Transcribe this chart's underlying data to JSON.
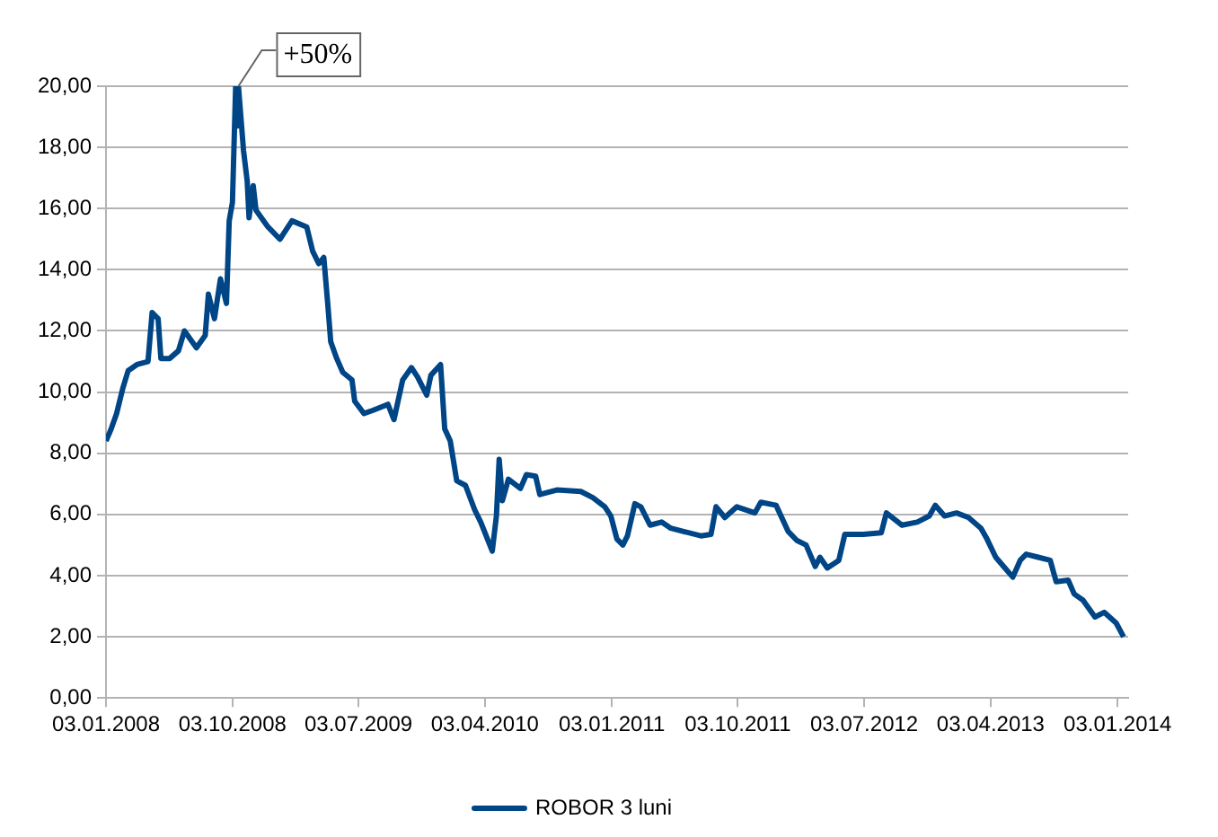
{
  "chart_data": {
    "type": "line",
    "x": [
      "2008-01-03",
      "2008-01-13",
      "2008-01-26",
      "2008-02-08",
      "2008-02-20",
      "2008-03-10",
      "2008-04-03",
      "2008-04-12",
      "2008-04-25",
      "2008-05-01",
      "2008-05-20",
      "2008-06-08",
      "2008-06-21",
      "2008-07-17",
      "2008-08-05",
      "2008-08-12",
      "2008-08-25",
      "2008-09-07",
      "2008-09-20",
      "2008-09-26",
      "2008-10-03",
      "2008-10-10",
      "2008-10-13",
      "2008-10-16",
      "2008-10-27",
      "2008-11-04",
      "2008-11-08",
      "2008-11-17",
      "2008-11-23",
      "2008-12-19",
      "2009-01-14",
      "2009-02-09",
      "2009-03-13",
      "2009-03-26",
      "2009-04-08",
      "2009-04-19",
      "2009-04-28",
      "2009-05-04",
      "2009-05-17",
      "2009-05-30",
      "2009-06-19",
      "2009-06-25",
      "2009-07-15",
      "2009-08-03",
      "2009-09-05",
      "2009-09-18",
      "2009-10-07",
      "2009-10-26",
      "2009-11-08",
      "2009-11-28",
      "2009-12-07",
      "2009-12-28",
      "2010-01-06",
      "2010-01-18",
      "2010-02-01",
      "2010-02-20",
      "2010-03-12",
      "2010-03-25",
      "2010-04-19",
      "2010-04-28",
      "2010-05-04",
      "2010-05-11",
      "2010-05-24",
      "2010-06-19",
      "2010-07-02",
      "2010-07-22",
      "2010-07-31",
      "2010-09-06",
      "2010-10-28",
      "2010-11-23",
      "2010-12-19",
      "2011-01-01",
      "2011-01-14",
      "2011-01-27",
      "2011-02-06",
      "2011-02-22",
      "2011-03-07",
      "2011-03-27",
      "2011-04-21",
      "2011-05-11",
      "2011-06-06",
      "2011-07-15",
      "2011-08-06",
      "2011-08-17",
      "2011-09-05",
      "2011-10-01",
      "2011-11-09",
      "2011-11-22",
      "2011-12-25",
      "2012-01-20",
      "2012-02-08",
      "2012-02-28",
      "2012-03-19",
      "2012-03-29",
      "2012-04-14",
      "2012-05-09",
      "2012-05-22",
      "2012-07-01",
      "2012-08-09",
      "2012-08-20",
      "2012-09-23",
      "2012-10-26",
      "2012-11-21",
      "2012-12-04",
      "2012-12-24",
      "2013-01-19",
      "2013-02-14",
      "2013-03-13",
      "2013-03-26",
      "2013-04-14",
      "2013-05-04",
      "2013-05-21",
      "2013-06-06",
      "2013-06-19",
      "2013-07-15",
      "2013-08-10",
      "2013-08-23",
      "2013-09-18",
      "2013-10-01",
      "2013-10-20",
      "2013-11-15",
      "2013-12-05",
      "2013-12-31",
      "2014-01-16"
    ],
    "series": [
      {
        "name": "ROBOR 3 luni",
        "color": "#004586",
        "values": [
          8.4,
          8.75,
          9.3,
          10.1,
          10.7,
          10.9,
          11.0,
          12.6,
          12.4,
          11.1,
          11.1,
          11.35,
          12.0,
          11.45,
          11.85,
          13.2,
          12.4,
          13.7,
          12.9,
          15.6,
          16.2,
          20.0,
          18.7,
          20.0,
          17.9,
          16.9,
          15.7,
          16.75,
          15.95,
          15.4,
          15.0,
          15.6,
          15.4,
          14.6,
          14.2,
          14.4,
          12.8,
          11.65,
          11.1,
          10.65,
          10.4,
          9.7,
          9.3,
          9.4,
          9.6,
          9.1,
          10.4,
          10.8,
          10.5,
          9.9,
          10.55,
          10.9,
          8.8,
          8.4,
          7.1,
          6.95,
          6.15,
          5.75,
          4.8,
          5.95,
          7.8,
          6.45,
          7.15,
          6.85,
          7.3,
          7.25,
          6.65,
          6.8,
          6.75,
          6.55,
          6.25,
          5.95,
          5.2,
          5.0,
          5.3,
          6.35,
          6.25,
          5.65,
          5.75,
          5.55,
          5.45,
          5.3,
          5.35,
          6.25,
          5.9,
          6.25,
          6.05,
          6.4,
          6.3,
          5.45,
          5.15,
          5.0,
          4.3,
          4.6,
          4.25,
          4.5,
          5.35,
          5.35,
          5.4,
          6.05,
          5.65,
          5.75,
          5.95,
          6.3,
          5.95,
          6.05,
          5.9,
          5.55,
          5.2,
          4.6,
          4.25,
          3.95,
          4.5,
          4.7,
          4.6,
          4.5,
          3.8,
          3.85,
          3.4,
          3.2,
          2.65,
          2.8,
          2.45,
          2.0
        ]
      }
    ],
    "xlim": [
      "2008-01-03",
      "2014-01-26"
    ],
    "xticks": [
      {
        "value": "2008-01-03",
        "label": "03.01.2008"
      },
      {
        "value": "2008-10-03",
        "label": "03.10.2008"
      },
      {
        "value": "2009-07-03",
        "label": "03.07.2009"
      },
      {
        "value": "2010-04-03",
        "label": "03.04.2010"
      },
      {
        "value": "2011-01-03",
        "label": "03.01.2011"
      },
      {
        "value": "2011-10-03",
        "label": "03.10.2011"
      },
      {
        "value": "2012-07-03",
        "label": "03.07.2012"
      },
      {
        "value": "2013-04-03",
        "label": "03.04.2013"
      },
      {
        "value": "2014-01-03",
        "label": "03.01.2014"
      }
    ],
    "ylim": [
      0,
      20
    ],
    "yticks": [
      {
        "value": 0,
        "label": "0,00"
      },
      {
        "value": 2,
        "label": "2,00"
      },
      {
        "value": 4,
        "label": "4,00"
      },
      {
        "value": 6,
        "label": "6,00"
      },
      {
        "value": 8,
        "label": "8,00"
      },
      {
        "value": 10,
        "label": "10,00"
      },
      {
        "value": 12,
        "label": "12,00"
      },
      {
        "value": 14,
        "label": "14,00"
      },
      {
        "value": 16,
        "label": "16,00"
      },
      {
        "value": 18,
        "label": "18,00"
      },
      {
        "value": 20,
        "label": "20,00"
      }
    ],
    "annotations": [
      {
        "text": "+50%",
        "x": "2008-10-16",
        "y": 20
      }
    ],
    "grid": "y",
    "legend": "bottom",
    "line_style": "solid"
  }
}
